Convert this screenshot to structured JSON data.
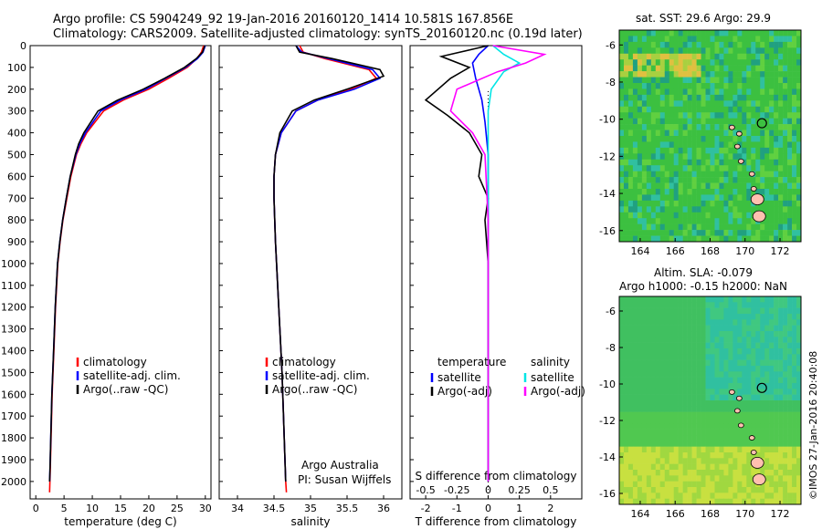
{
  "header": {
    "line1": "Argo profile: CS 5904249_92 19-Jan-2016 20160120_1414 10.581S 167.856E",
    "line2": "Climatology: CARS2009. Satellite-adjusted climatology: synTS_20160120.nc (0.19d later)"
  },
  "map_sst": {
    "title": "sat. SST: 29.6 Argo: 29.9",
    "xticks": [
      "164",
      "166",
      "168",
      "170",
      "172"
    ],
    "yticks": [
      "-6",
      "-8",
      "-10",
      "-12",
      "-14",
      "-16"
    ]
  },
  "map_sla": {
    "title1": "Altim. SLA: -0.079",
    "title2": "Argo h1000: -0.15 h2000: NaN",
    "xticks": [
      "164",
      "166",
      "168",
      "170",
      "172"
    ],
    "yticks": [
      "-6",
      "-8",
      "-10",
      "-12",
      "-14",
      "-16"
    ]
  },
  "footer_side": "©IMOS 27-Jan-2016 20:40:08",
  "credits": {
    "line1": "Argo Australia",
    "line2": "PI: Susan Wijffels"
  },
  "colors": {
    "climatology": "#ff0000",
    "satellite": "#0000ff",
    "argo": "#000000",
    "salinity_sat": "#00e5e5",
    "salinity_argo": "#ff00ff"
  },
  "chart_data": [
    {
      "type": "line",
      "xlabel": "temperature (deg C)",
      "ylabel": "",
      "xlim": [
        -1,
        31
      ],
      "ylim": [
        2080,
        0
      ],
      "y_reversed": true,
      "xticks": [
        "0",
        "5",
        "10",
        "15",
        "20",
        "25",
        "30"
      ],
      "yticks": [
        "0",
        "100",
        "200",
        "300",
        "400",
        "500",
        "600",
        "700",
        "800",
        "900",
        "1000",
        "1100",
        "1200",
        "1300",
        "1400",
        "1500",
        "1600",
        "1700",
        "1800",
        "1900",
        "2000"
      ],
      "legend": [
        "climatology",
        "satellite-adj. clim.",
        "Argo(..raw -QC)"
      ],
      "series": [
        {
          "name": "climatology",
          "x": [
            29.7,
            29.3,
            28.5,
            26.8,
            23.5,
            20.0,
            15.5,
            12.0,
            9.0,
            8.0,
            7.2,
            6.2,
            5.5,
            4.8,
            4.3,
            3.9,
            3.5,
            3.2,
            2.9,
            2.7,
            2.55,
            2.45
          ],
          "y": [
            0,
            30,
            60,
            100,
            150,
            200,
            250,
            300,
            400,
            450,
            500,
            600,
            700,
            800,
            900,
            1000,
            1200,
            1400,
            1600,
            1800,
            1950,
            2050
          ]
        },
        {
          "name": "satellite-adj. clim.",
          "x": [
            30.0,
            29.6,
            28.6,
            26.5,
            23.0,
            19.5,
            15.0,
            11.5,
            8.8,
            7.8,
            7.1,
            6.1,
            5.4,
            4.75,
            4.25,
            3.85,
            3.45,
            3.15,
            2.85,
            2.65,
            2.5,
            2.45
          ],
          "y": [
            0,
            30,
            60,
            100,
            150,
            200,
            250,
            300,
            400,
            450,
            500,
            600,
            700,
            800,
            900,
            1000,
            1200,
            1400,
            1600,
            1800,
            1950,
            2000
          ]
        },
        {
          "name": "Argo(..raw -QC)",
          "x": [
            29.9,
            29.5,
            28.4,
            26.3,
            22.8,
            19.0,
            14.5,
            11.0,
            8.5,
            7.6,
            7.0,
            6.1,
            5.4,
            4.75,
            4.25,
            3.85,
            3.45,
            3.15,
            2.85,
            2.65,
            2.5,
            2.45
          ],
          "y": [
            0,
            30,
            60,
            100,
            150,
            200,
            250,
            300,
            400,
            450,
            500,
            600,
            700,
            800,
            900,
            1000,
            1200,
            1400,
            1600,
            1800,
            1950,
            2000
          ]
        }
      ]
    },
    {
      "type": "line",
      "xlabel": "salinity",
      "xlim": [
        33.75,
        36.25
      ],
      "ylim": [
        2080,
        0
      ],
      "y_reversed": true,
      "xticks": [
        "34",
        "34.5",
        "35",
        "35.5",
        "36"
      ],
      "legend": [
        "climatology",
        "satellite-adj. clim.",
        "Argo(..raw -QC)"
      ],
      "series": [
        {
          "name": "climatology",
          "x": [
            34.85,
            34.9,
            35.2,
            35.8,
            35.9,
            35.55,
            35.1,
            34.8,
            34.6,
            34.52,
            34.5,
            34.5,
            34.52,
            34.55,
            34.58,
            34.61,
            34.63,
            34.65,
            34.66,
            34.67
          ],
          "y": [
            0,
            30,
            60,
            110,
            150,
            200,
            250,
            300,
            400,
            500,
            600,
            700,
            900,
            1100,
            1300,
            1500,
            1700,
            1900,
            2000,
            2050
          ]
        },
        {
          "name": "satellite-adj. clim.",
          "x": [
            34.8,
            34.88,
            35.25,
            35.85,
            35.95,
            35.6,
            35.1,
            34.8,
            34.6,
            34.52,
            34.5,
            34.5,
            34.52,
            34.55,
            34.58,
            34.61,
            34.63,
            34.65,
            34.66
          ],
          "y": [
            0,
            30,
            60,
            110,
            150,
            200,
            250,
            300,
            400,
            500,
            600,
            700,
            900,
            1100,
            1300,
            1500,
            1700,
            1900,
            2000
          ]
        },
        {
          "name": "Argo(..raw -QC)",
          "x": [
            34.8,
            34.85,
            35.3,
            35.95,
            36.0,
            35.5,
            35.05,
            34.75,
            34.58,
            34.52,
            34.5,
            34.5,
            34.52,
            34.55,
            34.58,
            34.61,
            34.63,
            34.65,
            34.66
          ],
          "y": [
            0,
            30,
            60,
            110,
            140,
            200,
            250,
            300,
            400,
            500,
            600,
            700,
            900,
            1100,
            1300,
            1500,
            1700,
            1900,
            2000
          ]
        }
      ]
    },
    {
      "type": "line",
      "xlabel": "T difference from climatology",
      "xlabel_top": "S difference from climatology",
      "xlim": [
        -2.5,
        3
      ],
      "ylim": [
        2080,
        0
      ],
      "y_reversed": true,
      "xticks": [
        "-2",
        "-1",
        "0",
        "1",
        "2"
      ],
      "xticks_top": [
        "-0.5",
        "-0.25",
        "0",
        "0.25",
        "0.5"
      ],
      "legend_temperature": {
        "title": "temperature",
        "items": [
          "satellite",
          "Argo(-adj)"
        ]
      },
      "legend_salinity": {
        "title": "salinity",
        "items": [
          "satellite",
          "Argo(-adj)"
        ]
      },
      "series": [
        {
          "name": "satellite",
          "group": "temperature",
          "x": [
            0.0,
            -0.3,
            -0.5,
            -0.4,
            -0.2,
            -0.1,
            0.0,
            0.0,
            0.0,
            0.0,
            0.0,
            0.0
          ],
          "y": [
            0,
            40,
            80,
            150,
            250,
            350,
            500,
            700,
            1000,
            1400,
            1800,
            2000
          ]
        },
        {
          "name": "Argo(-adj)",
          "group": "temperature",
          "x": [
            0.0,
            -1.5,
            -0.6,
            -1.2,
            -2.0,
            -1.3,
            -0.6,
            -0.2,
            -0.3,
            0.0,
            -0.1,
            0.0,
            0.0,
            0.0
          ],
          "y": [
            0,
            50,
            100,
            150,
            250,
            320,
            400,
            500,
            600,
            700,
            800,
            1000,
            1500,
            2000
          ]
        },
        {
          "name": "satellite",
          "group": "salinity",
          "x": [
            0.15,
            0.5,
            1.0,
            0.5,
            0.1,
            0.0,
            0.0,
            0.0,
            0.0,
            0.0,
            0.0
          ],
          "y": [
            0,
            40,
            80,
            120,
            200,
            300,
            500,
            800,
            1200,
            1600,
            2000
          ]
        },
        {
          "name": "Argo(-adj)",
          "group": "salinity",
          "x": [
            0.15,
            1.8,
            1.2,
            0.3,
            -1.0,
            -1.2,
            -0.5,
            -0.1,
            0.0,
            0.0,
            0.0
          ],
          "y": [
            0,
            40,
            80,
            120,
            200,
            300,
            400,
            500,
            800,
            1400,
            2000
          ]
        }
      ]
    }
  ]
}
